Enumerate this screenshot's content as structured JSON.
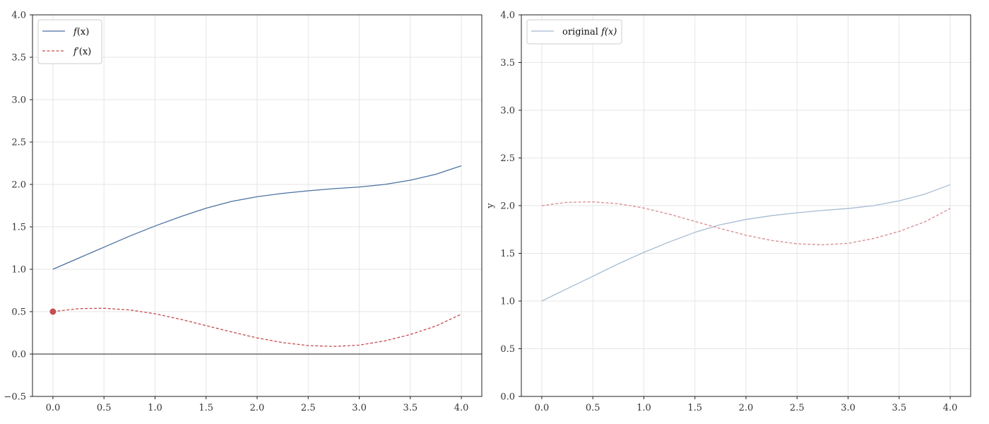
{
  "chart_data": [
    {
      "type": "line",
      "panel": "left",
      "title": "",
      "xlabel": "",
      "ylabel": "",
      "xlim": [
        -0.2,
        4.2
      ],
      "ylim": [
        -0.5,
        4.0
      ],
      "xticks": [
        "0.0",
        "0.5",
        "1.0",
        "1.5",
        "2.0",
        "2.5",
        "3.0",
        "3.5",
        "4.0"
      ],
      "yticks": [
        "−0.5",
        "0.0",
        "0.5",
        "1.0",
        "1.5",
        "2.0",
        "2.5",
        "3.0",
        "3.5",
        "4.0"
      ],
      "grid": true,
      "hline": 0.0,
      "legend": {
        "placement": "top-left",
        "entries": [
          {
            "label_main": "f",
            "label_rest": "(x)",
            "color": "#4c72a0",
            "dash": "solid"
          },
          {
            "label_main": "f′",
            "label_rest": "(x)",
            "color": "#c44e52",
            "dash": "dashed"
          }
        ]
      },
      "series": [
        {
          "name": "f(x)",
          "color": "#4c72a0",
          "dash": "solid",
          "opacity": 1.0,
          "x": [
            0.0,
            0.25,
            0.5,
            0.75,
            1.0,
            1.25,
            1.5,
            1.75,
            2.0,
            2.25,
            2.5,
            2.75,
            3.0,
            3.25,
            3.5,
            3.75,
            4.0
          ],
          "y": [
            1.0,
            1.13,
            1.26,
            1.39,
            1.51,
            1.62,
            1.72,
            1.8,
            1.855,
            1.895,
            1.925,
            1.95,
            1.97,
            2.0,
            2.05,
            2.12,
            2.22
          ]
        },
        {
          "name": "f′(x)",
          "color": "#c44e52",
          "dash": "dashed",
          "opacity": 1.0,
          "x": [
            0.0,
            0.25,
            0.5,
            0.75,
            1.0,
            1.25,
            1.5,
            1.75,
            2.0,
            2.25,
            2.5,
            2.75,
            3.0,
            3.25,
            3.5,
            3.75,
            4.0
          ],
          "y": [
            0.5,
            0.535,
            0.54,
            0.52,
            0.475,
            0.41,
            0.335,
            0.26,
            0.19,
            0.135,
            0.1,
            0.09,
            0.105,
            0.155,
            0.23,
            0.33,
            0.47
          ]
        }
      ],
      "points": [
        {
          "x": 0.0,
          "y": 0.5,
          "color": "#c44e52"
        }
      ]
    },
    {
      "type": "line",
      "panel": "right",
      "title": "",
      "xlabel": "",
      "ylabel": "y",
      "xlim": [
        -0.2,
        4.2
      ],
      "ylim": [
        0.0,
        4.0
      ],
      "xticks": [
        "0.0",
        "0.5",
        "1.0",
        "1.5",
        "2.0",
        "2.5",
        "3.0",
        "3.5",
        "4.0"
      ],
      "yticks": [
        "0.0",
        "0.5",
        "1.0",
        "1.5",
        "2.0",
        "2.5",
        "3.0",
        "3.5",
        "4.0"
      ],
      "grid": true,
      "legend": {
        "placement": "top-left",
        "entries": [
          {
            "label_main": "original ",
            "label_rest": "f(x)",
            "color": "#a7bbd2",
            "dash": "solid"
          }
        ]
      },
      "series": [
        {
          "name": "original f(x)",
          "color": "#a7bbd2",
          "dash": "solid",
          "opacity": 1.0,
          "x": [
            0.0,
            0.25,
            0.5,
            0.75,
            1.0,
            1.25,
            1.5,
            1.75,
            2.0,
            2.25,
            2.5,
            2.75,
            3.0,
            3.25,
            3.5,
            3.75,
            4.0
          ],
          "y": [
            1.0,
            1.13,
            1.26,
            1.39,
            1.51,
            1.62,
            1.72,
            1.8,
            1.855,
            1.895,
            1.925,
            1.95,
            1.97,
            2.0,
            2.05,
            2.12,
            2.22
          ]
        },
        {
          "name": "",
          "color": "#d88a90",
          "dash": "dashed",
          "opacity": 1.0,
          "x": [
            0.0,
            0.25,
            0.5,
            0.75,
            1.0,
            1.25,
            1.5,
            1.75,
            2.0,
            2.25,
            2.5,
            2.75,
            3.0,
            3.25,
            3.5,
            3.75,
            4.0
          ],
          "y": [
            2.0,
            2.035,
            2.04,
            2.02,
            1.975,
            1.91,
            1.835,
            1.76,
            1.69,
            1.635,
            1.6,
            1.59,
            1.605,
            1.655,
            1.73,
            1.83,
            1.97
          ]
        }
      ],
      "points": []
    }
  ]
}
